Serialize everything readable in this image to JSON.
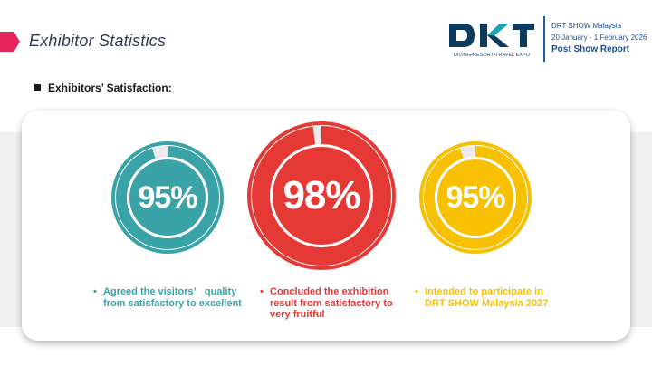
{
  "header": {
    "section_title": "Exhibitor Statistics",
    "logo_tagline": "DIVING•RESORT•TRAVEL EXPO",
    "event_name": "DRT SHOW Malaysia",
    "event_dates": "20 January - 1 February 2026",
    "report_title": "Post Show Report",
    "accent_color": "#e8245c",
    "header_text_color": "#1f4e8c"
  },
  "subheading": "Exhibitors’ Satisfaction:",
  "stats": [
    {
      "value": 95,
      "label": "95%",
      "color": "#3aa3a8",
      "caption_lines": [
        "Agreed the visitors’   quality",
        "from satisfactory to excellent"
      ]
    },
    {
      "value": 98,
      "label": "98%",
      "color": "#e53935",
      "caption_lines": [
        "Concluded the exhibition",
        "result from satisfactory to",
        "very fruitful"
      ]
    },
    {
      "value": 95,
      "label": "95%",
      "color": "#f7c000",
      "caption_lines": [
        "Intended to participate in",
        "DRT SHOW Malaysia 2027"
      ]
    }
  ]
}
